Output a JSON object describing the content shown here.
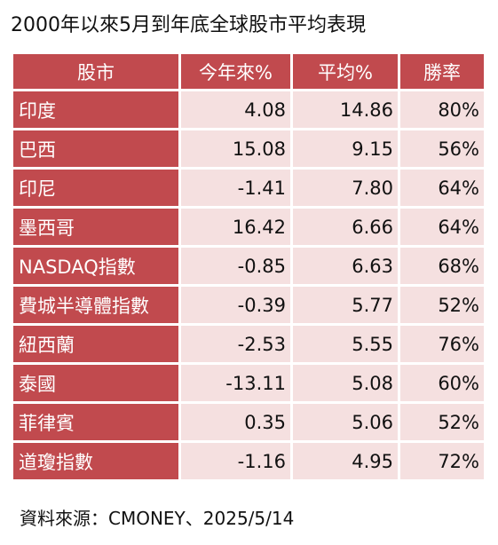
{
  "colors": {
    "header_bg": "#c14a4e",
    "name_cell_bg": "#c14a4e",
    "value_cell_bg": "#f5e0e0",
    "header_text": "#ffffff",
    "value_text": "#111111"
  },
  "chart_data": {
    "type": "table",
    "title": "2000年以來5月到年底全球股市平均表現",
    "columns": [
      "股市",
      "今年來%",
      "平均%",
      "勝率"
    ],
    "rows": [
      [
        "印度",
        "4.08",
        "14.86",
        "80%"
      ],
      [
        "巴西",
        "15.08",
        "9.15",
        "56%"
      ],
      [
        "印尼",
        "-1.41",
        "7.80",
        "64%"
      ],
      [
        "墨西哥",
        "16.42",
        "6.66",
        "64%"
      ],
      [
        "NASDAQ指數",
        "-0.85",
        "6.63",
        "68%"
      ],
      [
        "費城半導體指數",
        "-0.39",
        "5.77",
        "52%"
      ],
      [
        "紐西蘭",
        "-2.53",
        "5.55",
        "76%"
      ],
      [
        "泰國",
        "-13.11",
        "5.08",
        "60%"
      ],
      [
        "菲律賓",
        "0.35",
        "5.06",
        "52%"
      ],
      [
        "道瓊指數",
        "-1.16",
        "4.95",
        "72%"
      ]
    ],
    "source": "資料來源：CMONEY、2025/5/14"
  }
}
